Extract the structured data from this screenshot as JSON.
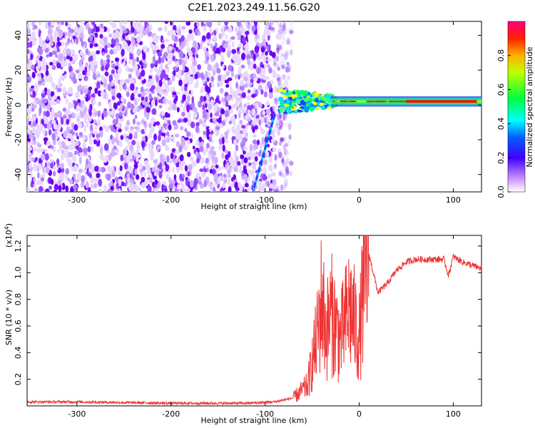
{
  "title": "C2E1.2023.249.11.56.G20",
  "chart_data": [
    {
      "type": "heatmap",
      "xlabel": "Height of straight line (km)",
      "ylabel": "Frequency (Hz)",
      "xlim": [
        -353,
        130
      ],
      "ylim": [
        -50,
        48
      ],
      "xticks": [
        -300,
        -200,
        -100,
        0,
        100
      ],
      "yticks": [
        -40,
        -20,
        0,
        20,
        40
      ],
      "colorbar": {
        "label": "Normalized spectral amplitude",
        "range": [
          0,
          1
        ],
        "ticks": [
          "0.0",
          "0.2",
          "0.4",
          "0.6",
          "0.8"
        ],
        "colormap": [
          "#ffffff",
          "#8000ff",
          "#0000ff",
          "#00ffff",
          "#00ff00",
          "#ffff00",
          "#ff0000",
          "#ff0080"
        ]
      },
      "description_regions": {
        "noise_x_range": [
          -353,
          -80
        ],
        "signal_line_freq_hz": 2
      }
    },
    {
      "type": "line",
      "xlabel": "Height of straight line (km)",
      "ylabel": "SNR (10 * v/v)",
      "yscale_label": "(x10",
      "yscale_exp": "4",
      "yscale_close": ")",
      "xlim": [
        -353,
        130
      ],
      "ylim": [
        0,
        1.28
      ],
      "xticks": [
        -300,
        -200,
        -100,
        0,
        100
      ],
      "yticks": [
        "0.2",
        "0.4",
        "0.6",
        "0.8",
        "1.0",
        "1.2"
      ],
      "color": "#ee3333",
      "series": [
        {
          "x": [
            -353,
            -300,
            -200,
            -120,
            -90,
            -70,
            -55,
            -45,
            -40,
            -35,
            -30,
            -20,
            -10,
            0,
            5,
            10,
            20,
            30,
            40,
            50,
            60,
            80,
            90,
            95,
            100,
            110,
            130
          ],
          "y": [
            0.03,
            0.03,
            0.02,
            0.02,
            0.03,
            0.06,
            0.15,
            0.5,
            0.8,
            0.55,
            0.7,
            0.5,
            0.75,
            0.5,
            0.9,
            1.15,
            0.85,
            0.92,
            1.02,
            1.08,
            1.1,
            1.1,
            1.1,
            0.98,
            1.12,
            1.08,
            1.03
          ]
        }
      ]
    }
  ]
}
